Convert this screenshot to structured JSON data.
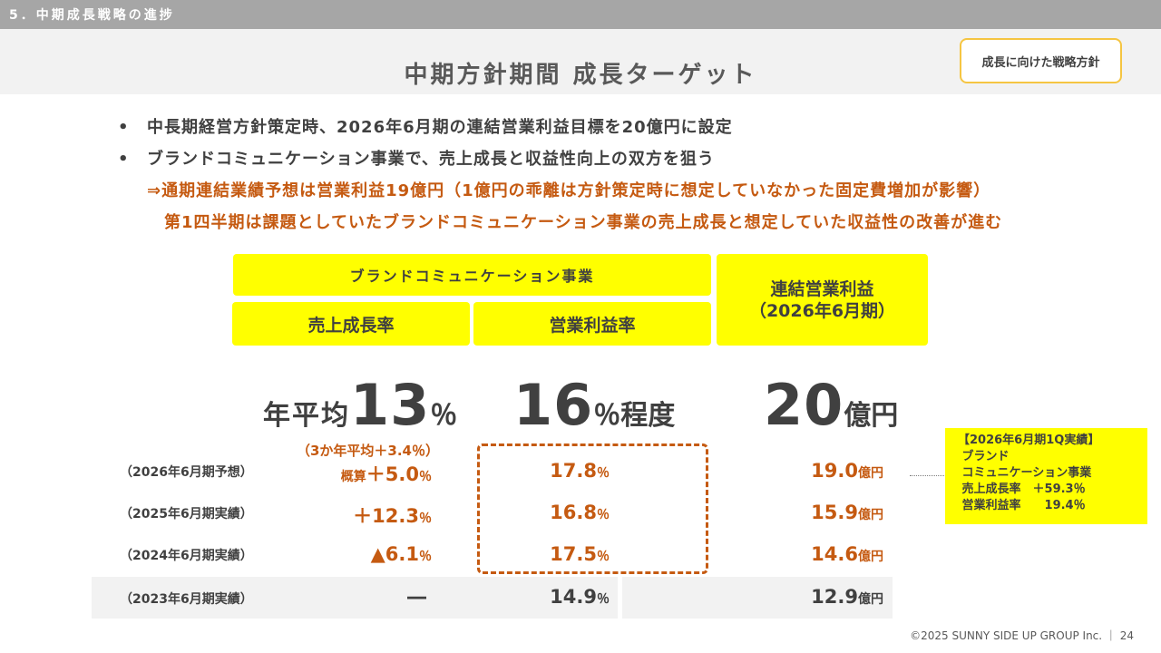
{
  "section": {
    "label": "5．中期成長戦略の進捗"
  },
  "title": "中期方針期間 成長ターゲット",
  "strategy_button": "成長に向けた戦略方針",
  "bullets": [
    "中長期経営方針策定時、2026年6月期の連結営業利益目標を20億円に設定",
    "ブランドコミュニケーション事業で、売上成長と収益性向上の双方を狙う"
  ],
  "notes": [
    "⇒通期連結業績予想は営業利益19億円（1億円の乖離は方針策定時に想定していなかった固定費増加が影響）",
    "第1四半期は課題としていたブランドコミュニケーション事業の売上成長と想定していた収益性の改善が進む"
  ],
  "headers": {
    "brand_business": "ブランドコミュニケーション事業",
    "sales_growth": "売上成長率",
    "op_margin": "営業利益率",
    "consolidated_line1": "連結営業利益",
    "consolidated_line2": "（2026年6月期）"
  },
  "targets": {
    "sales_growth_prefix": "年平均",
    "sales_growth_value": "13",
    "sales_growth_unit": "％",
    "op_margin_value": "16",
    "op_margin_unit": "％程度",
    "consolidated_value": "20",
    "consolidated_unit": "億円"
  },
  "rows": [
    {
      "label": "（2026年6月期予想）",
      "growth_note": "（3か年平均＋3.4％）",
      "growth_prefix": "概算",
      "growth": "＋5.0",
      "growth_unit": "％",
      "margin": "17.8",
      "margin_unit": "％",
      "profit": "19.0",
      "profit_unit": "億円"
    },
    {
      "label": "（2025年6月期実績）",
      "growth": "＋12.3",
      "growth_unit": "％",
      "margin": "16.8",
      "margin_unit": "％",
      "profit": "15.9",
      "profit_unit": "億円"
    },
    {
      "label": "（2024年6月期実績）",
      "growth": "▲6.1",
      "growth_unit": "％",
      "margin": "17.5",
      "margin_unit": "％",
      "profit": "14.6",
      "profit_unit": "億円"
    },
    {
      "label": "（2023年6月期実績）",
      "growth": "―",
      "margin": "14.9",
      "margin_unit": "％",
      "profit": "12.9",
      "profit_unit": "億円"
    }
  ],
  "callout": "【2026年6月期1Q実績】\n ブランド\n コミュニケーション事業\n 売上成長率　＋59.3％\n 営業利益率　　19.4％",
  "footer": "©2025 SUNNY SIDE UP GROUP Inc. ｜ 24",
  "colors": {
    "accent_yellow": "#ffff00",
    "accent_orange": "#c55a11",
    "section_bar": "#a6a6a6"
  }
}
